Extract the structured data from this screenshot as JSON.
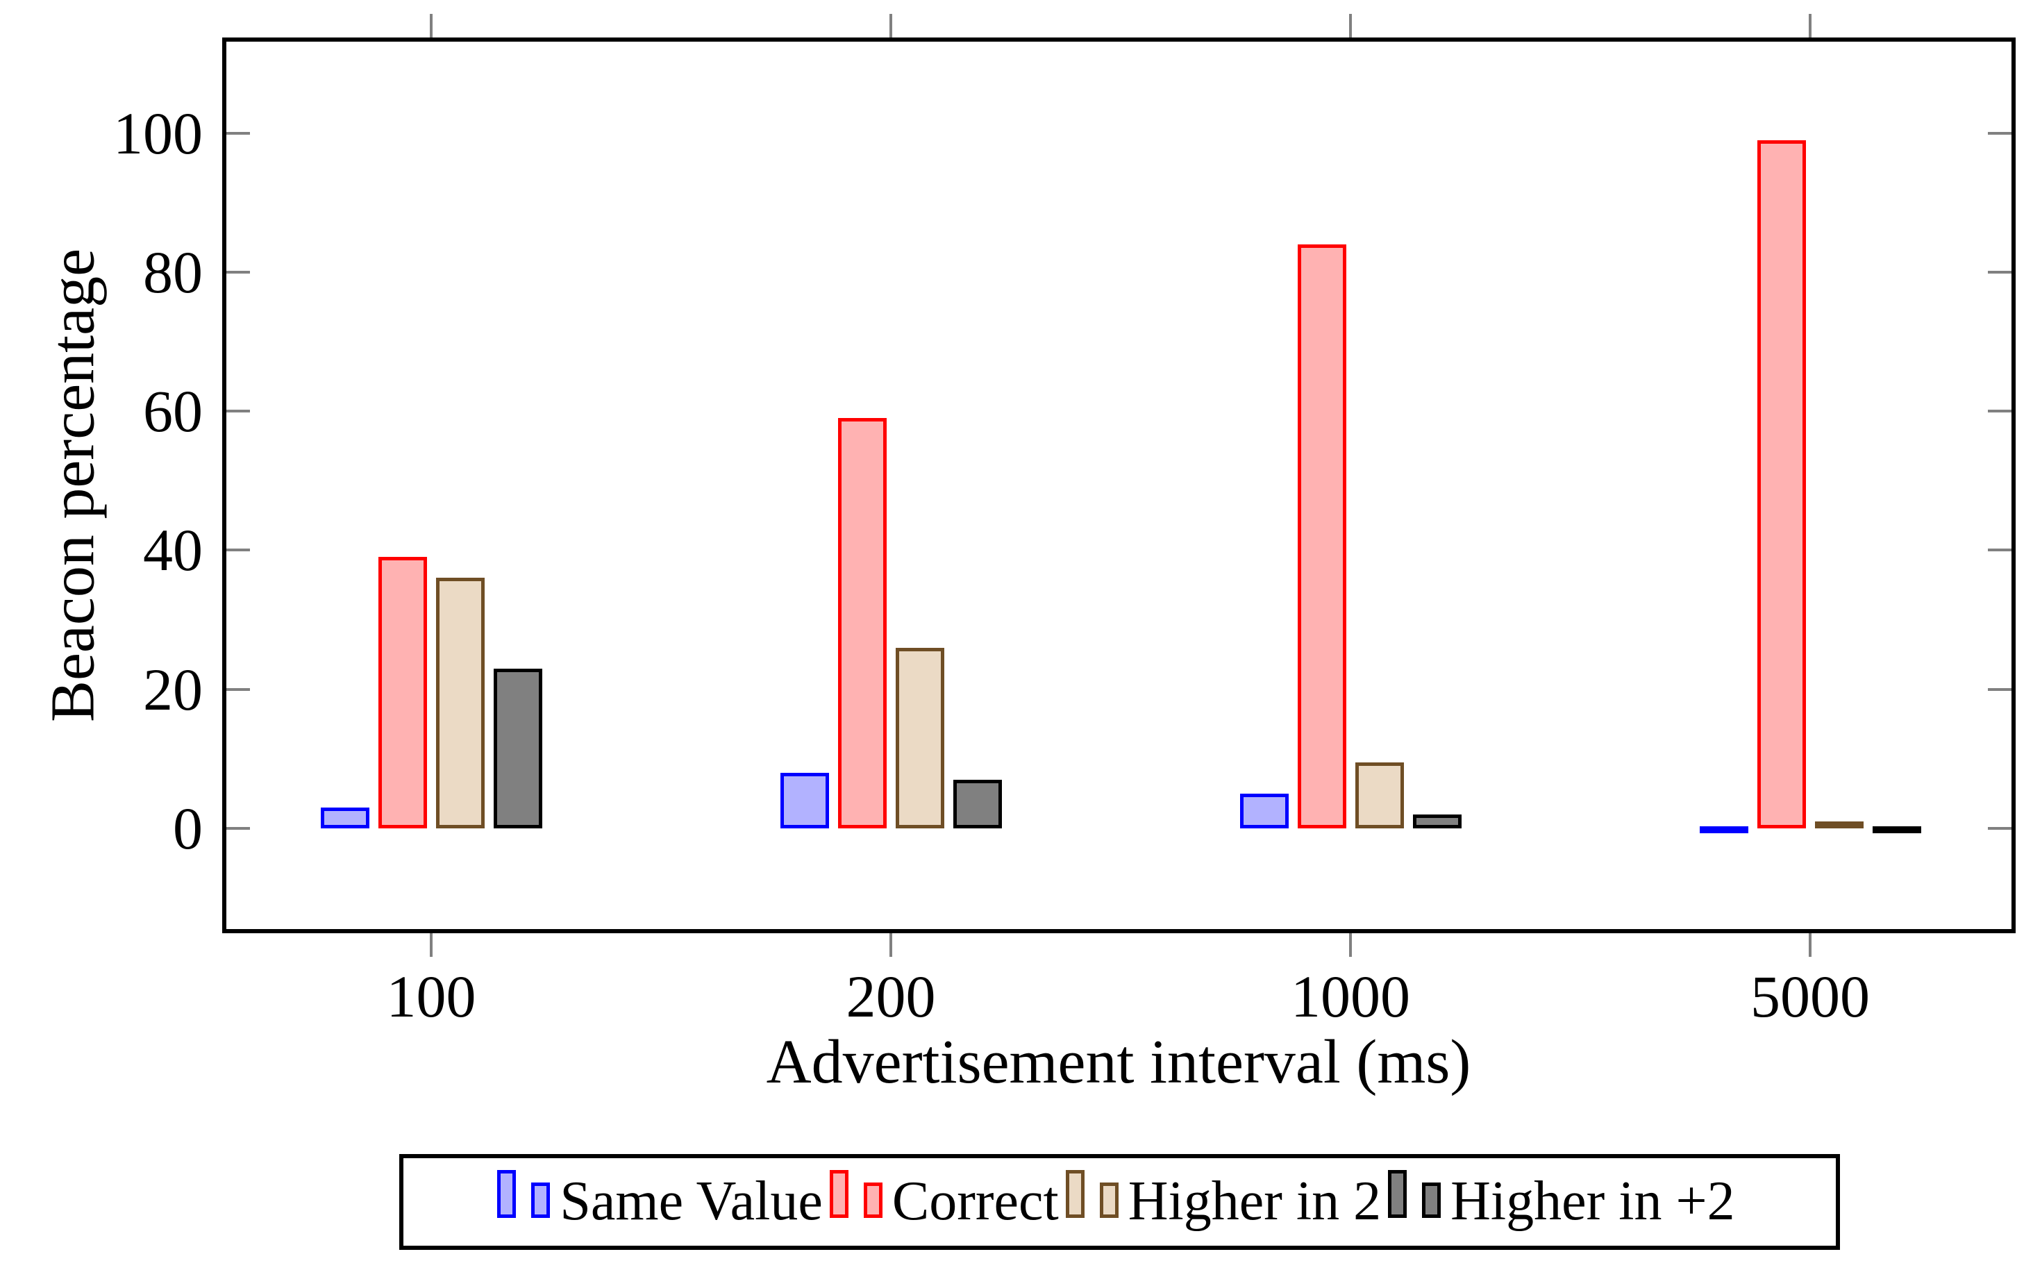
{
  "chart_data": {
    "type": "bar",
    "title": "",
    "xlabel": "Advertisement interval (ms)",
    "ylabel": "Beacon percentage",
    "categories": [
      "100",
      "200",
      "1000",
      "5000"
    ],
    "series": [
      {
        "name": "Same Value",
        "border_color": "#0000ff",
        "fill_color": "#b2b2ff",
        "values": [
          3,
          8,
          5,
          0.3
        ]
      },
      {
        "name": "Correct",
        "border_color": "#ff0000",
        "fill_color": "#ffb2b2",
        "values": [
          39,
          59,
          84,
          99
        ]
      },
      {
        "name": "Higher in 2",
        "border_color": "#6f4e25",
        "fill_color": "#ebdac5",
        "values": [
          36,
          26,
          9.5,
          1
        ]
      },
      {
        "name": "Higher in +2",
        "border_color": "#000000",
        "fill_color": "#808080",
        "values": [
          23,
          7,
          2,
          0.2
        ]
      }
    ],
    "yticks": [
      0,
      20,
      40,
      60,
      80,
      100
    ],
    "ylim": [
      -14,
      113
    ],
    "grid": false,
    "legend_position": "below-chart-horizontal",
    "tick_color": "#808080",
    "axis_color": "#000000",
    "background_color": "#ffffff"
  }
}
